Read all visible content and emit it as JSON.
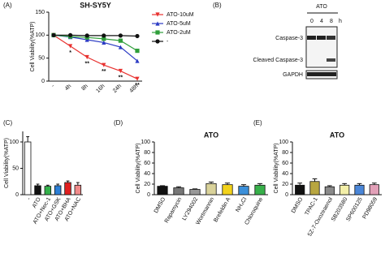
{
  "chart_data": [
    {
      "type": "line",
      "panel": "(A)",
      "title": "SH-SY5Y",
      "y_label": "Cell Viability(%ATP)",
      "categories": [
        "-",
        "4h",
        "8h",
        "16h",
        "24h",
        "48h"
      ],
      "series": [
        {
          "name": "ATO-10uM",
          "color": "#e8312f",
          "marker": "triangle-down",
          "values": [
            100,
            76,
            52,
            35,
            22,
            5
          ]
        },
        {
          "name": "ATO-5uM",
          "color": "#2b3bc4",
          "marker": "triangle-up",
          "values": [
            100,
            96,
            90,
            84,
            74,
            44
          ]
        },
        {
          "name": "ATO-2uM",
          "color": "#2f9e3a",
          "marker": "square",
          "values": [
            100,
            97,
            95,
            92,
            88,
            66
          ]
        },
        {
          "name": "-",
          "color": "#111111",
          "marker": "circle",
          "values": [
            100,
            100,
            99,
            99,
            99,
            98
          ]
        }
      ],
      "significance": [
        null,
        "*",
        "**",
        "**",
        "**",
        "**"
      ],
      "ylim": [
        0,
        150
      ],
      "yticks": [
        0,
        50,
        100,
        150
      ],
      "legend": "right"
    },
    {
      "type": "bar",
      "panel": "(C)",
      "y_label": "Cell Viability(%ATP)",
      "categories": [
        "-",
        "ATO",
        "ATO+Nec-1",
        "ATO+GSK",
        "ATO+BHA",
        "ATO+NAC"
      ],
      "values": [
        100,
        17,
        16,
        17,
        23,
        18
      ],
      "errors": [
        10,
        3,
        2,
        3,
        3,
        5
      ],
      "colors": [
        "#ffffff",
        "#111111",
        "#33b04a",
        "#2c7fd6",
        "#e02020",
        "#f08a8a"
      ],
      "ylim": [
        0,
        120
      ],
      "yticks": [
        0,
        50,
        100
      ]
    },
    {
      "type": "bar",
      "panel": "(D)",
      "title": "ATO",
      "y_label": "Cell Viability(%ATP)",
      "categories": [
        "DMSO",
        "Rapamycin",
        "LY294002",
        "Wortmannin",
        "Brefeldin A",
        "NH₄Cl",
        "Chloroquine"
      ],
      "values": [
        16,
        13,
        10,
        21,
        19,
        16,
        18
      ],
      "errors": [
        1,
        2,
        1,
        3,
        3,
        3,
        3
      ],
      "colors": [
        "#111111",
        "#777777",
        "#999999",
        "#d9d29a",
        "#f2d21b",
        "#3b8fd9",
        "#37b04a"
      ],
      "ylim": [
        0,
        100
      ],
      "yticks": [
        0,
        20,
        40,
        60,
        80,
        100
      ]
    },
    {
      "type": "bar",
      "panel": "(E)",
      "title": "ATO",
      "y_label": "Cell Viability(%ATP)",
      "categories": [
        "DMSO",
        "TPAC-1",
        "5Z-7-Oxozeaenol",
        "SB203580",
        "SP600125",
        "PD98059"
      ],
      "values": [
        18,
        25,
        15,
        18,
        18,
        19
      ],
      "errors": [
        4,
        5,
        2,
        3,
        3,
        3
      ],
      "colors": [
        "#111111",
        "#b8a640",
        "#8a8a8a",
        "#f3efa8",
        "#4a86d8",
        "#e2a0b8"
      ],
      "ylim": [
        0,
        100
      ],
      "yticks": [
        0,
        20,
        40,
        60,
        80,
        100
      ]
    }
  ],
  "blot": {
    "panel": "(B)",
    "title": "ATO",
    "columns": [
      "0",
      "4",
      "8",
      "h"
    ],
    "rows": [
      "Caspase-3",
      "Cleaved Caspase-3",
      "GAPDH"
    ]
  }
}
